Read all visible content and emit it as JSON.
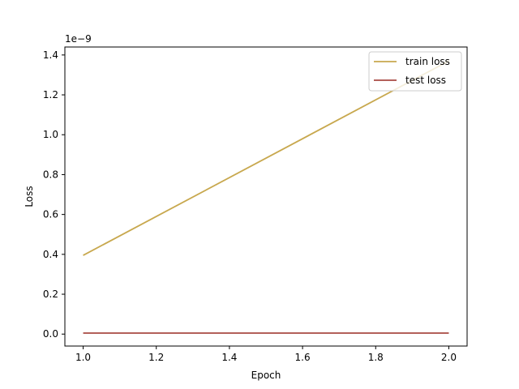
{
  "chart_data": {
    "type": "line",
    "title": "",
    "xlabel": "Epoch",
    "ylabel": "Loss",
    "y_offset_label": "1e−9",
    "xlim": [
      0.95,
      2.05
    ],
    "ylim": [
      -0.06,
      1.44
    ],
    "x_ticks": [
      1.0,
      1.2,
      1.4,
      1.6,
      1.8,
      2.0
    ],
    "x_tick_labels": [
      "1.0",
      "1.2",
      "1.4",
      "1.6",
      "1.8",
      "2.0"
    ],
    "y_ticks": [
      0.0,
      0.2,
      0.4,
      0.6,
      0.8,
      1.0,
      1.2,
      1.4
    ],
    "y_tick_labels": [
      "0.0",
      "0.2",
      "0.4",
      "0.6",
      "0.8",
      "1.0",
      "1.2",
      "1.4"
    ],
    "grid": false,
    "legend_position": "top-right",
    "series": [
      {
        "name": "train loss",
        "color": "#c8a84e",
        "x": [
          1.0,
          2.0
        ],
        "y": [
          0.395,
          1.37
        ]
      },
      {
        "name": "test loss",
        "color": "#a84a42",
        "x": [
          1.0,
          2.0
        ],
        "y": [
          0.005,
          0.005
        ]
      }
    ]
  }
}
